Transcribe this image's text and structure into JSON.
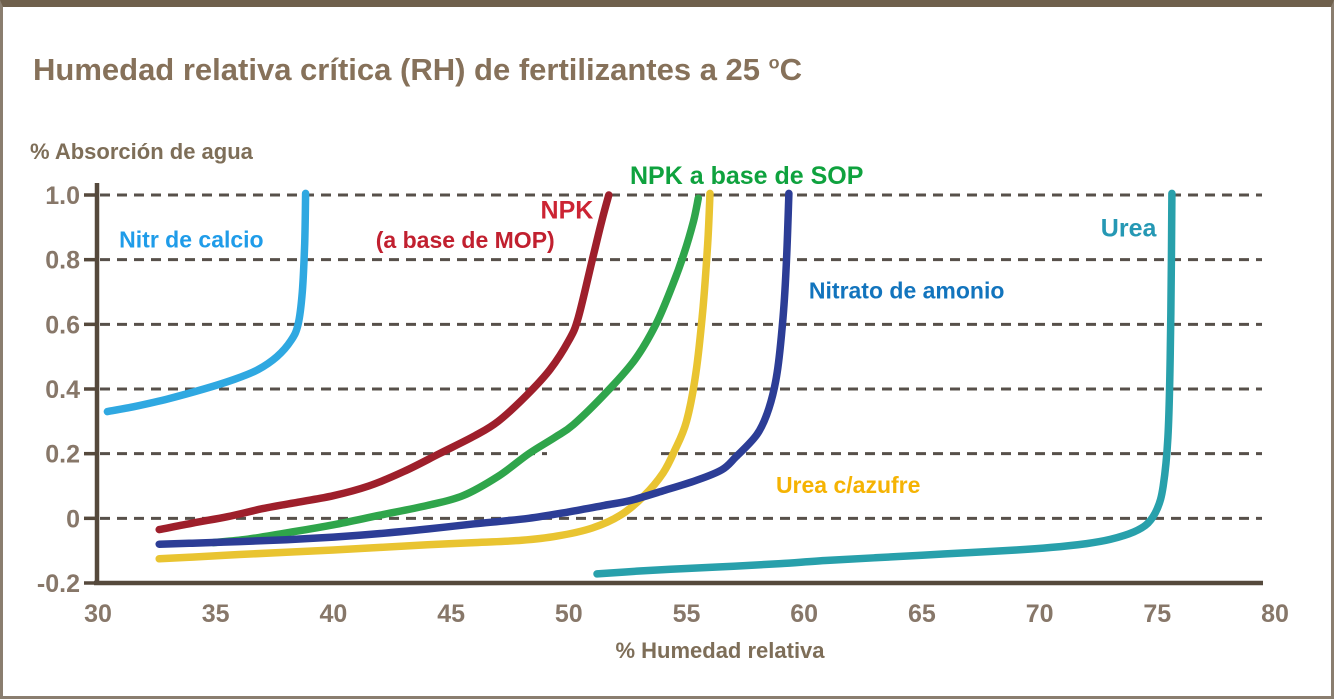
{
  "title": {
    "prefix": "Humedad relativa crítica (RH) de fertilizantes a 25 ",
    "superscript": "o",
    "suffix": "C"
  },
  "chart_data": {
    "type": "line",
    "title": "Humedad relativa crítica (RH) de fertilizantes a 25 °C",
    "xlabel": "% Humedad relativa",
    "ylabel": "% Absorción de agua",
    "xlim": [
      30,
      80
    ],
    "ylim": [
      -0.2,
      1.0
    ],
    "x_ticks": [
      30,
      35,
      40,
      45,
      50,
      55,
      60,
      65,
      70,
      75,
      80
    ],
    "y_ticks": [
      {
        "v": 1.0,
        "label": "1.0"
      },
      {
        "v": 0.8,
        "label": "0.8"
      },
      {
        "v": 0.6,
        "label": "0.6"
      },
      {
        "v": 0.4,
        "label": "0.4"
      },
      {
        "v": 0.2,
        "label": "0.2"
      },
      {
        "v": 0.0,
        "label": "0"
      },
      {
        "v": -0.2,
        "label": "-0.2"
      }
    ],
    "grid": {
      "horizontal_dashed": true,
      "color": "#57504a"
    },
    "axis_color": "#55493c",
    "tick_label_color": "#877769",
    "series": [
      {
        "name": "Nitrato de calcio",
        "color": "#2fa8e1",
        "points": [
          [
            30.4,
            0.33
          ],
          [
            31.5,
            0.345
          ],
          [
            33,
            0.37
          ],
          [
            34.5,
            0.4
          ],
          [
            35.8,
            0.43
          ],
          [
            36.8,
            0.46
          ],
          [
            37.6,
            0.5
          ],
          [
            38.2,
            0.55
          ],
          [
            38.5,
            0.6
          ],
          [
            38.68,
            0.7
          ],
          [
            38.78,
            0.85
          ],
          [
            38.82,
            1.005
          ]
        ]
      },
      {
        "name": "NPK (a base de MOP)",
        "color": "#9e1f2b",
        "points": [
          [
            32.6,
            -0.035
          ],
          [
            34,
            -0.015
          ],
          [
            35.5,
            0.005
          ],
          [
            37,
            0.03
          ],
          [
            38.5,
            0.05
          ],
          [
            40,
            0.07
          ],
          [
            41.5,
            0.1
          ],
          [
            43,
            0.145
          ],
          [
            44.5,
            0.2
          ],
          [
            46,
            0.255
          ],
          [
            47,
            0.3
          ],
          [
            48.2,
            0.38
          ],
          [
            49.2,
            0.46
          ],
          [
            50.0,
            0.55
          ],
          [
            50.4,
            0.62
          ],
          [
            51.0,
            0.8
          ],
          [
            51.4,
            0.92
          ],
          [
            51.7,
            1.0
          ]
        ]
      },
      {
        "name": "NPK a base de SOP",
        "color": "#2fa54b",
        "points": [
          [
            34.9,
            -0.075
          ],
          [
            36.3,
            -0.065
          ],
          [
            38,
            -0.045
          ],
          [
            40,
            -0.02
          ],
          [
            42,
            0.01
          ],
          [
            44,
            0.04
          ],
          [
            45.5,
            0.07
          ],
          [
            47,
            0.13
          ],
          [
            48.3,
            0.2
          ],
          [
            49.4,
            0.25
          ],
          [
            50.2,
            0.29
          ],
          [
            51.6,
            0.39
          ],
          [
            52.8,
            0.49
          ],
          [
            53.7,
            0.6
          ],
          [
            54.4,
            0.72
          ],
          [
            54.9,
            0.82
          ],
          [
            55.3,
            0.92
          ],
          [
            55.5,
            0.99
          ]
        ]
      },
      {
        "name": "Urea c/azufre",
        "color": "#e9c431",
        "points": [
          [
            32.6,
            -0.125
          ],
          [
            34,
            -0.12
          ],
          [
            36,
            -0.112
          ],
          [
            38,
            -0.105
          ],
          [
            40,
            -0.098
          ],
          [
            42,
            -0.09
          ],
          [
            44,
            -0.082
          ],
          [
            46,
            -0.075
          ],
          [
            48,
            -0.068
          ],
          [
            49.5,
            -0.055
          ],
          [
            51,
            -0.03
          ],
          [
            52.2,
            0.01
          ],
          [
            53.2,
            0.07
          ],
          [
            54,
            0.14
          ],
          [
            54.5,
            0.21
          ],
          [
            55,
            0.3
          ],
          [
            55.4,
            0.45
          ],
          [
            55.7,
            0.65
          ],
          [
            55.9,
            0.85
          ],
          [
            56.0,
            1.005
          ]
        ]
      },
      {
        "name": "Nitrato de amonio",
        "color": "#2c3d96",
        "points": [
          [
            32.6,
            -0.08
          ],
          [
            34,
            -0.077
          ],
          [
            36,
            -0.072
          ],
          [
            38,
            -0.066
          ],
          [
            40,
            -0.058
          ],
          [
            42,
            -0.047
          ],
          [
            44,
            -0.033
          ],
          [
            46,
            -0.017
          ],
          [
            48.3,
            0.0
          ],
          [
            50,
            0.02
          ],
          [
            51.5,
            0.04
          ],
          [
            52.6,
            0.055
          ],
          [
            54,
            0.085
          ],
          [
            55.4,
            0.117
          ],
          [
            56.5,
            0.15
          ],
          [
            57.1,
            0.19
          ],
          [
            58,
            0.26
          ],
          [
            58.5,
            0.34
          ],
          [
            58.85,
            0.45
          ],
          [
            59.1,
            0.62
          ],
          [
            59.25,
            0.8
          ],
          [
            59.35,
            1.005
          ]
        ]
      },
      {
        "name": "Urea",
        "color": "#28a0ab",
        "points": [
          [
            51.2,
            -0.172
          ],
          [
            53,
            -0.163
          ],
          [
            55,
            -0.155
          ],
          [
            57,
            -0.148
          ],
          [
            59,
            -0.14
          ],
          [
            61,
            -0.13
          ],
          [
            63,
            -0.122
          ],
          [
            65,
            -0.114
          ],
          [
            67,
            -0.106
          ],
          [
            69,
            -0.098
          ],
          [
            70.5,
            -0.09
          ],
          [
            72,
            -0.078
          ],
          [
            73,
            -0.065
          ],
          [
            74,
            -0.042
          ],
          [
            74.6,
            -0.015
          ],
          [
            75.0,
            0.03
          ],
          [
            75.25,
            0.1
          ],
          [
            75.45,
            0.25
          ],
          [
            75.55,
            0.5
          ],
          [
            75.6,
            0.8
          ],
          [
            75.62,
            1.005
          ]
        ]
      }
    ],
    "annotations": [
      {
        "text": "Nitr de calcio",
        "x": 30.9,
        "y": 0.864,
        "color": "#1f9ce9",
        "size": 23
      },
      {
        "text": "NPK",
        "x": 48.8,
        "y": 0.955,
        "color": "#cc2433",
        "size": 25
      },
      {
        "text": "(a base de MOP)",
        "x": 41.8,
        "y": 0.862,
        "color": "#c1202f",
        "size": 23
      },
      {
        "text": "NPK a base de SOP",
        "x": 52.6,
        "y": 1.062,
        "color": "#0fa23e",
        "size": 25
      },
      {
        "text": "Nitrato de amonio",
        "x": 60.2,
        "y": 0.705,
        "color": "#1274bd",
        "size": 23
      },
      {
        "text": "Urea c/azufre",
        "x": 58.8,
        "y": 0.104,
        "color": "#f5b303",
        "size": 23
      },
      {
        "text": "Urea",
        "x": 72.6,
        "y": 0.9,
        "color": "#2598b4",
        "size": 25
      }
    ]
  }
}
